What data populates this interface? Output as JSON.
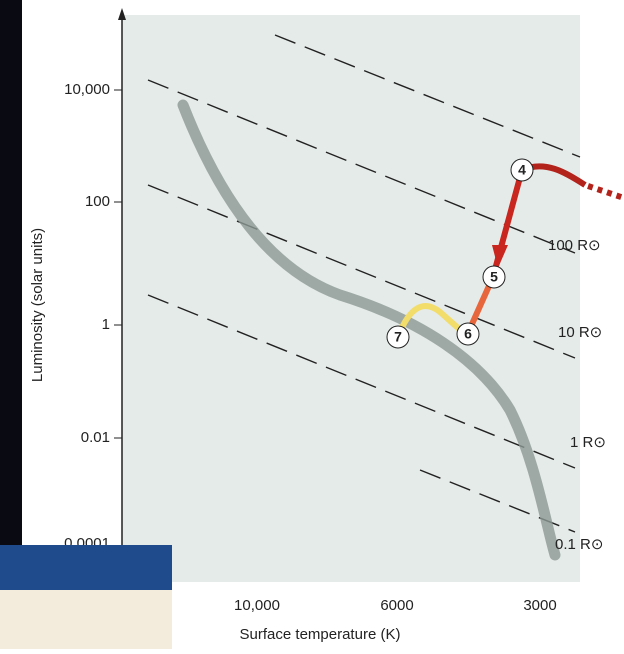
{
  "axes": {
    "y_label": "Luminosity (solar units)",
    "x_label": "Surface temperature (K)",
    "y_ticks": [
      "10,000",
      "100",
      "1",
      "0.01",
      "0.0001"
    ],
    "x_ticks": [
      "10,000",
      "6000",
      "3000"
    ]
  },
  "radius_labels": [
    "100 R⊙",
    "10 R⊙",
    "1 R⊙",
    "0.1 R⊙"
  ],
  "stages": [
    "4",
    "5",
    "6",
    "7"
  ]
}
